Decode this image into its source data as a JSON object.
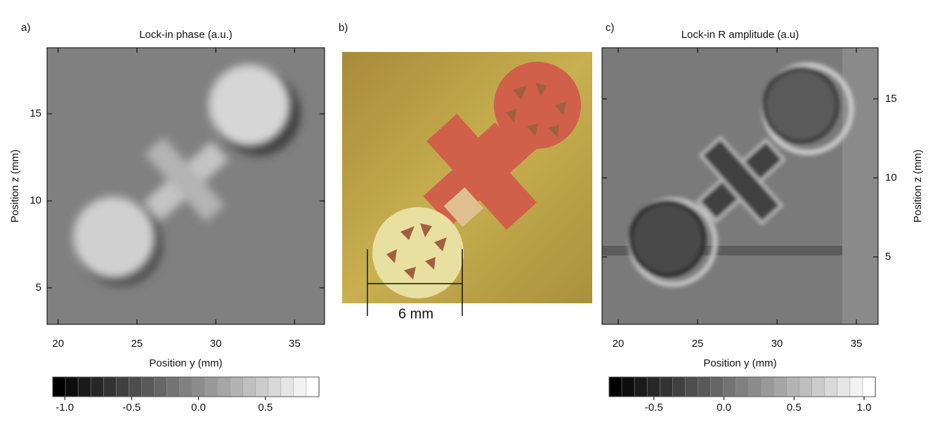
{
  "chart_data": [
    {
      "type": "image",
      "label": "a)",
      "title": "Lock-in phase (a.u.)",
      "xlabel": "Position y (mm)",
      "ylabel": "Position z (mm)",
      "xlim": [
        19.3,
        36.9
      ],
      "xticks": [
        20,
        25,
        30,
        35
      ],
      "ylim": [
        2.9,
        18.8
      ],
      "yticks": [
        5,
        10,
        15
      ],
      "yaxis_side": "left",
      "colorbar": {
        "lim": [
          -1.09,
          0.9
        ],
        "ticks": [
          {
            "value": -1,
            "label": "-1.0"
          },
          -0.5,
          {
            "value": 0,
            "label": "0.0"
          },
          0.5
        ]
      }
    },
    {
      "type": "photo",
      "label": "b)",
      "annotation": "6 mm"
    },
    {
      "type": "image",
      "label": "c)",
      "title": "Lock-in R amplitude (a.u)",
      "xlabel": "Position y (mm)",
      "ylabel": "Position z (mm)",
      "xlim": [
        18.98,
        36.37
      ],
      "xticks": [
        20,
        25,
        30,
        35
      ],
      "ylim": [
        0.73,
        18.24
      ],
      "yticks": [
        5,
        10,
        15
      ],
      "yaxis_side": "right",
      "colorbar": {
        "lim": [
          -0.82,
          1.08
        ],
        "ticks": [
          -0.5,
          {
            "value": 0,
            "label": "0.0"
          },
          0.5,
          {
            "value": 1,
            "label": "1.0"
          }
        ]
      }
    }
  ]
}
